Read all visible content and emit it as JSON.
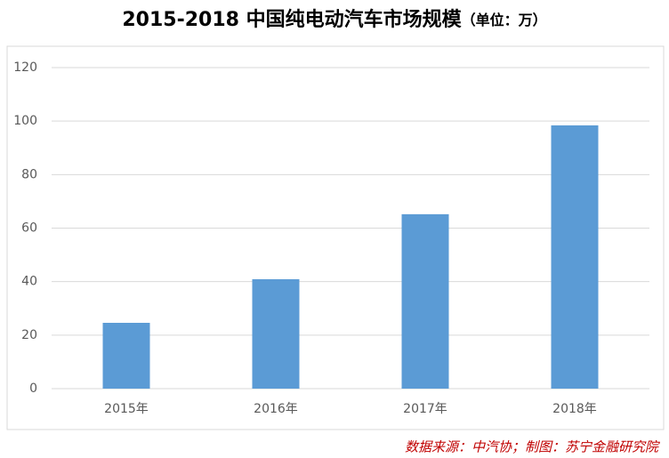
{
  "chart_data": {
    "type": "bar",
    "title": "2015-2018 中国纯电动汽车市场规模",
    "unit": "（单位：万）",
    "categories": [
      "2015年",
      "2016年",
      "2017年",
      "2018年"
    ],
    "values": [
      24.6,
      40.9,
      65.2,
      98.4
    ],
    "color": "#5b9bd5",
    "ylim": [
      0,
      120
    ],
    "yticks": [
      0,
      20,
      40,
      60,
      80,
      100,
      120
    ],
    "grid": true,
    "source": "数据来源：中汽协；制图：苏宁金融研究院"
  }
}
